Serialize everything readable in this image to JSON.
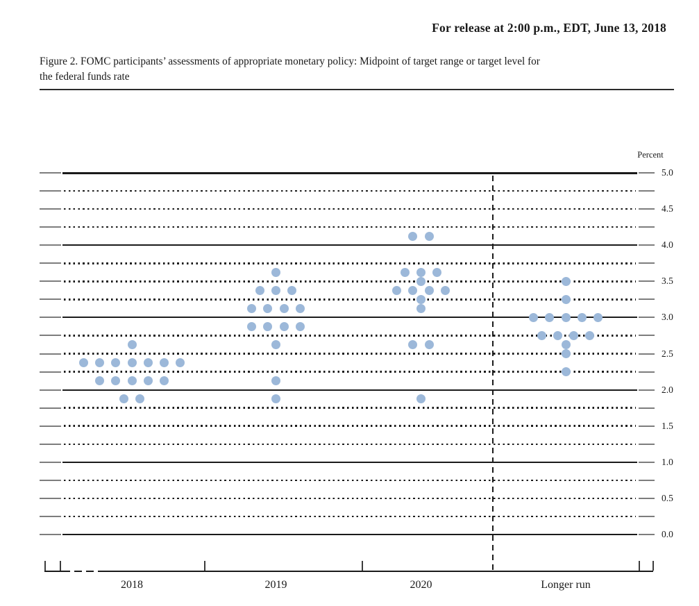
{
  "page": {
    "release_line": "For release at 2:00 p.m., EDT, June 13, 2018",
    "caption_line1": "Figure 2. FOMC participants’ assessments of appropriate monetary policy: Midpoint of target range or target level for",
    "caption_line2": "the federal funds rate"
  },
  "chart_data": {
    "type": "scatter",
    "title": "FOMC participants’ assessments of appropriate monetary policy: Midpoint of target range or target level for the federal funds rate",
    "ylabel": "Percent",
    "ylim": [
      0.0,
      5.0
    ],
    "grid_interval": 0.25,
    "label_interval": 0.5,
    "grid_style": "solid lines at whole percents, dotted lines at quarter percents",
    "legend_position": "none",
    "dot_color": "#9cb8d9",
    "y_tick_labels": [
      "5.0",
      "4.5",
      "4.0",
      "3.5",
      "3.0",
      "2.5",
      "2.0",
      "1.5",
      "1.0",
      "0.5",
      "0.0"
    ],
    "categories": [
      "2018",
      "2019",
      "2020",
      "Longer run"
    ],
    "separator_note": "dashed vertical line between 2020 and Longer run",
    "series": [
      {
        "category": "2018",
        "dots": [
          {
            "rate": 2.625,
            "count": 1
          },
          {
            "rate": 2.375,
            "count": 7
          },
          {
            "rate": 2.125,
            "count": 5
          },
          {
            "rate": 1.875,
            "count": 2
          }
        ]
      },
      {
        "category": "2019",
        "dots": [
          {
            "rate": 3.625,
            "count": 1
          },
          {
            "rate": 3.375,
            "count": 3
          },
          {
            "rate": 3.125,
            "count": 4
          },
          {
            "rate": 2.875,
            "count": 4
          },
          {
            "rate": 2.625,
            "count": 1
          },
          {
            "rate": 2.125,
            "count": 1
          },
          {
            "rate": 1.875,
            "count": 1
          }
        ]
      },
      {
        "category": "2020",
        "dots": [
          {
            "rate": 4.125,
            "count": 2
          },
          {
            "rate": 3.625,
            "count": 3
          },
          {
            "rate": 3.5,
            "count": 1
          },
          {
            "rate": 3.375,
            "count": 4
          },
          {
            "rate": 3.25,
            "count": 1
          },
          {
            "rate": 3.125,
            "count": 1
          },
          {
            "rate": 2.625,
            "count": 2
          },
          {
            "rate": 1.875,
            "count": 1
          }
        ]
      },
      {
        "category": "Longer run",
        "dots": [
          {
            "rate": 3.5,
            "count": 1
          },
          {
            "rate": 3.25,
            "count": 1
          },
          {
            "rate": 3.0,
            "count": 5
          },
          {
            "rate": 2.75,
            "count": 4
          },
          {
            "rate": 2.625,
            "count": 1
          },
          {
            "rate": 2.5,
            "count": 1
          },
          {
            "rate": 2.25,
            "count": 1
          }
        ]
      }
    ]
  }
}
